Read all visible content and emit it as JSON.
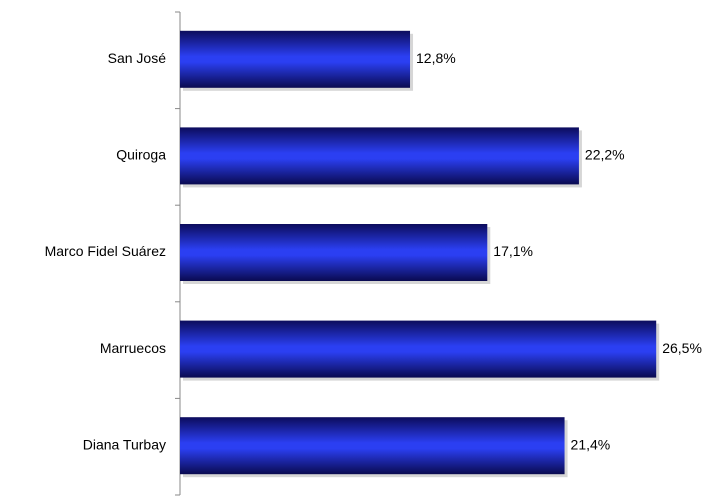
{
  "chart_data": {
    "type": "bar",
    "orientation": "horizontal",
    "categories": [
      "San José",
      "Quiroga",
      "Marco Fidel Suárez",
      "Marruecos",
      "Diana Turbay"
    ],
    "values": [
      12.8,
      22.2,
      17.1,
      26.5,
      21.4
    ],
    "value_labels": [
      "12,8%",
      "22,2%",
      "17,1%",
      "26,5%",
      "21,4%"
    ],
    "color": "#2b3ff2"
  }
}
